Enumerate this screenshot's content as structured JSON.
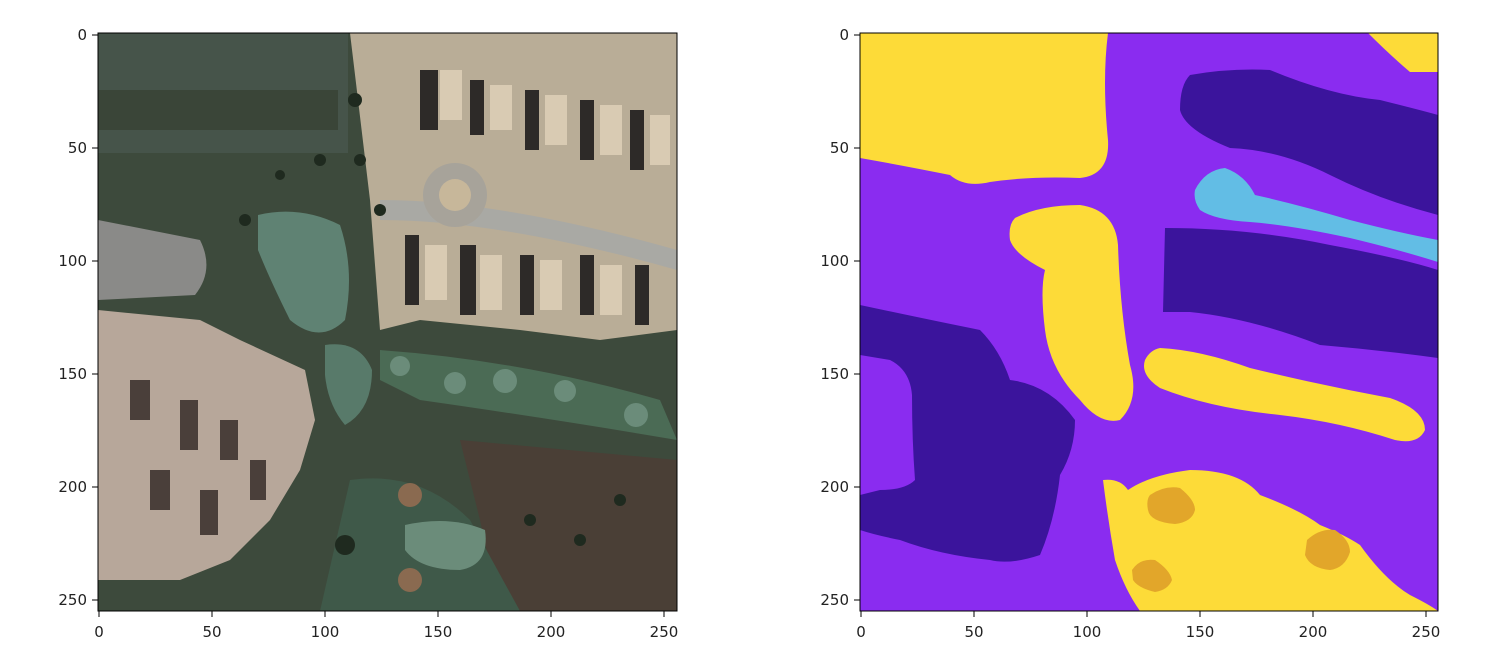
{
  "panels": [
    {
      "name": "satellite-image",
      "content": "aerial photo of residential houses, circular road, ponds and golf greens",
      "xticks": [
        "0",
        "50",
        "100",
        "150",
        "200",
        "250"
      ],
      "yticks": [
        "0",
        "50",
        "100",
        "150",
        "200",
        "250"
      ],
      "xlim": [
        0,
        255
      ],
      "ylim": [
        255,
        0
      ]
    },
    {
      "name": "segmentation-mask",
      "content": "segmentation mask with purple background, dark indigo, yellow, light-blue and gold regions",
      "xticks": [
        "0",
        "50",
        "100",
        "150",
        "200",
        "250"
      ],
      "yticks": [
        "0",
        "50",
        "100",
        "150",
        "200",
        "250"
      ],
      "xlim": [
        0,
        255
      ],
      "ylim": [
        255,
        0
      ]
    }
  ],
  "colors": {
    "mask_background": "#8a2cf0",
    "mask_dark": "#3b149c",
    "mask_yellow": "#fddb38",
    "mask_blue": "#62bde5",
    "mask_gold": "#e2a62a",
    "photo_grass": "#3d4a3c",
    "photo_building": "#bdae98",
    "photo_water": "#5c7c6e"
  }
}
